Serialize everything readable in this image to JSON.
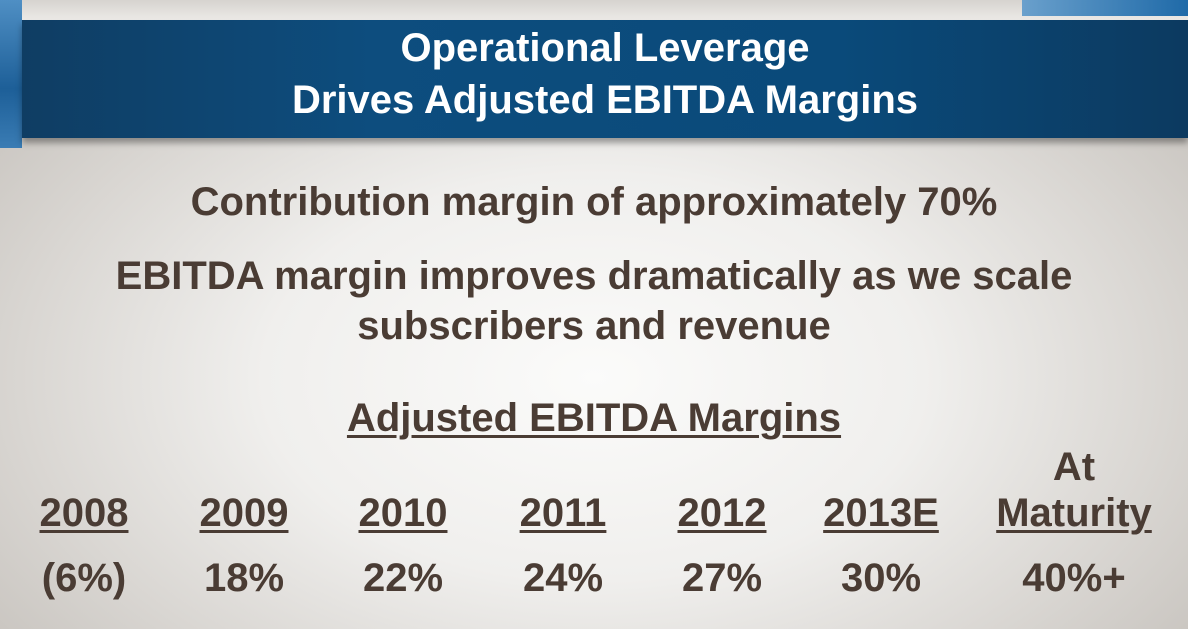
{
  "header": {
    "title_line1": "Operational Leverage",
    "title_line2": "Drives Adjusted EBITDA Margins"
  },
  "body": {
    "line1": "Contribution margin of approximately 70%",
    "line2": "EBITDA margin improves dramatically as we scale",
    "line3": "subscribers and revenue"
  },
  "margins": {
    "title": "Adjusted EBITDA Margins",
    "columns": [
      {
        "label": "2008",
        "value": "(6%)"
      },
      {
        "label": "2009",
        "value": "18%"
      },
      {
        "label": "2010",
        "value": "22%"
      },
      {
        "label": "2011",
        "value": "24%"
      },
      {
        "label": "2012",
        "value": "27%"
      },
      {
        "label": "2013E",
        "value": "30%"
      },
      {
        "label_line1": "At",
        "label_line2": "Maturity",
        "value": "40%+"
      }
    ]
  },
  "colors": {
    "banner": "#0d4d7e",
    "text": "#4a3c34",
    "banner_text": "#ffffff"
  }
}
